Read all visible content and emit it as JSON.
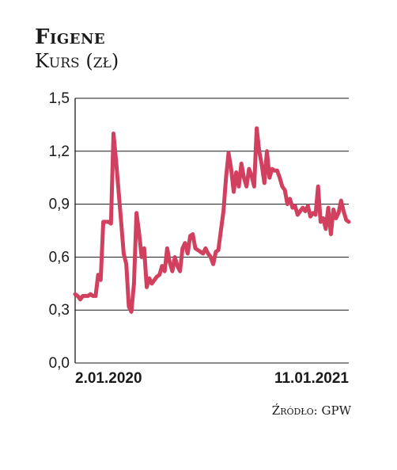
{
  "chart_data": {
    "type": "line",
    "title": "Figene",
    "subtitle": "Kurs (zł)",
    "ylim": [
      0,
      1.5
    ],
    "y_ticks": [
      "0,0",
      "0,3",
      "0,6",
      "0,9",
      "1,2",
      "1,5"
    ],
    "x_tick_labels": [
      "2.01.2020",
      "11.01.2021"
    ],
    "grid": true,
    "series_color": "#d1405f",
    "series": [
      {
        "values": [
          0.39,
          0.38,
          0.36,
          0.38,
          0.38,
          0.38,
          0.39,
          0.38,
          0.38,
          0.5,
          0.47,
          0.8,
          0.8,
          0.8,
          0.79,
          1.3,
          1.15,
          0.97,
          0.8,
          0.62,
          0.56,
          0.32,
          0.29,
          0.45,
          0.85,
          0.74,
          0.6,
          0.65,
          0.43,
          0.48,
          0.45,
          0.47,
          0.49,
          0.5,
          0.55,
          0.52,
          0.65,
          0.57,
          0.52,
          0.6,
          0.55,
          0.52,
          0.65,
          0.68,
          0.62,
          0.72,
          0.73,
          0.65,
          0.64,
          0.63,
          0.62,
          0.65,
          0.62,
          0.6,
          0.56,
          0.63,
          0.64,
          0.75,
          0.86,
          1.05,
          1.19,
          1.1,
          0.97,
          1.08,
          1.0,
          1.13,
          1.05,
          1.0,
          1.1,
          1.06,
          1.0,
          1.33,
          1.2,
          1.12,
          1.02,
          1.2,
          1.05,
          1.1,
          1.09,
          1.09,
          1.05,
          1.0,
          0.98,
          0.9,
          0.93,
          0.88,
          0.89,
          0.84,
          0.86,
          0.88,
          0.86,
          0.89,
          0.83,
          0.85,
          0.84,
          1.0,
          0.8,
          0.82,
          0.76,
          0.88,
          0.73,
          0.87,
          0.82,
          0.85,
          0.92,
          0.86,
          0.81,
          0.8
        ]
      }
    ]
  },
  "source_label": "Źródło: GPW"
}
